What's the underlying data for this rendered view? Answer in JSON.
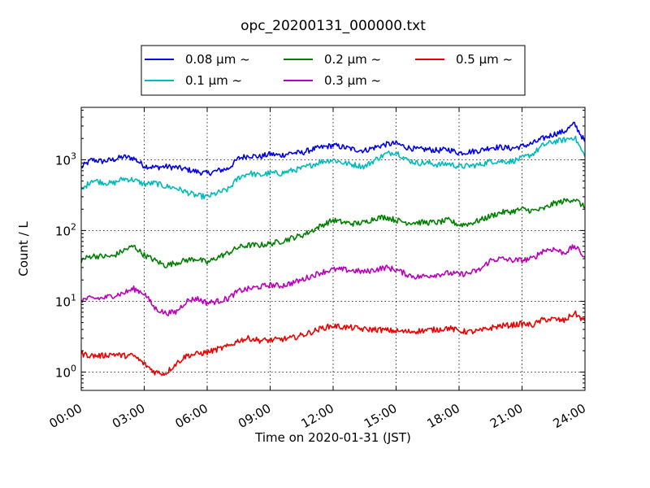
{
  "chart_data": {
    "type": "line",
    "title": "opc_20200131_000000.txt",
    "xlabel": "Time on 2020-01-31 (JST)",
    "ylabel": "Count / L",
    "yscale": "log",
    "ylim": [
      0.55,
      5500
    ],
    "xlim": [
      "2020-01-31 00:00",
      "2020-02-01 00:00"
    ],
    "xticks": [
      "00:00",
      "03:00",
      "06:00",
      "09:00",
      "12:00",
      "15:00",
      "18:00",
      "21:00",
      "24:00"
    ],
    "yticks": [
      {
        "value": 1,
        "base": "10",
        "exp": "0"
      },
      {
        "value": 10,
        "base": "10",
        "exp": "1"
      },
      {
        "value": 100,
        "base": "10",
        "exp": "2"
      },
      {
        "value": 1000,
        "base": "10",
        "exp": "3"
      }
    ],
    "grid": true,
    "legend_position": "top-center",
    "legend_columns": 3,
    "x": [
      "00:00",
      "00:30",
      "01:00",
      "01:30",
      "02:00",
      "02:30",
      "03:00",
      "03:30",
      "04:00",
      "04:30",
      "05:00",
      "05:30",
      "06:00",
      "06:30",
      "07:00",
      "07:30",
      "08:00",
      "08:30",
      "09:00",
      "09:30",
      "10:00",
      "10:30",
      "11:00",
      "11:30",
      "12:00",
      "12:30",
      "13:00",
      "13:30",
      "14:00",
      "14:30",
      "15:00",
      "15:30",
      "16:00",
      "16:30",
      "17:00",
      "17:30",
      "18:00",
      "18:30",
      "19:00",
      "19:30",
      "20:00",
      "20:30",
      "21:00",
      "21:30",
      "22:00",
      "22:30",
      "23:00",
      "23:30",
      "24:00"
    ],
    "series": [
      {
        "name": "0.08 μm ~",
        "label": "0.08",
        "color": "#0000ee",
        "values": [
          780,
          1000,
          950,
          1000,
          1100,
          1050,
          820,
          780,
          800,
          780,
          730,
          680,
          640,
          700,
          750,
          1050,
          1150,
          1100,
          1200,
          1150,
          1250,
          1250,
          1400,
          1500,
          1600,
          1500,
          1400,
          1350,
          1500,
          1650,
          1700,
          1500,
          1400,
          1400,
          1350,
          1400,
          1250,
          1300,
          1350,
          1500,
          1500,
          1450,
          1550,
          1700,
          2000,
          2300,
          2500,
          3200,
          1800
        ]
      },
      {
        "name": "0.1 μm ~",
        "label": "0.1",
        "color": "#00bbbb",
        "values": [
          360,
          520,
          480,
          460,
          540,
          520,
          450,
          470,
          420,
          400,
          350,
          310,
          300,
          340,
          380,
          560,
          650,
          600,
          650,
          640,
          700,
          750,
          850,
          950,
          1000,
          900,
          850,
          800,
          1000,
          1200,
          1300,
          1000,
          900,
          900,
          850,
          880,
          800,
          820,
          850,
          950,
          950,
          950,
          1050,
          1200,
          1600,
          1800,
          1900,
          2100,
          1100
        ]
      },
      {
        "name": "0.2 μm ~",
        "label": "0.2",
        "color": "#008000",
        "values": [
          38,
          44,
          43,
          43,
          52,
          60,
          45,
          38,
          32,
          35,
          38,
          40,
          35,
          42,
          48,
          58,
          62,
          62,
          65,
          70,
          78,
          85,
          100,
          120,
          140,
          130,
          125,
          130,
          150,
          155,
          140,
          130,
          130,
          130,
          130,
          140,
          120,
          125,
          140,
          160,
          180,
          185,
          200,
          190,
          200,
          240,
          260,
          280,
          210
        ]
      },
      {
        "name": "0.3 μm ~",
        "label": "0.3",
        "color": "#bb00bb",
        "values": [
          10.5,
          11,
          11,
          12,
          13,
          15,
          13,
          8,
          6.8,
          7,
          10,
          11,
          9.5,
          10,
          11,
          14,
          15,
          16,
          17,
          16.5,
          18,
          20,
          23,
          26,
          28,
          28,
          27,
          26,
          28,
          30,
          28,
          24,
          22,
          23,
          24,
          25,
          24,
          25,
          28,
          38,
          40,
          38,
          38,
          40,
          52,
          55,
          48,
          60,
          42
        ]
      },
      {
        "name": "0.5 μm ~",
        "label": "0.5",
        "color": "#ee0000",
        "values": [
          1.8,
          1.7,
          1.7,
          1.8,
          1.7,
          1.7,
          1.3,
          1.0,
          0.95,
          1.3,
          1.7,
          1.8,
          1.9,
          2.1,
          2.3,
          2.8,
          3.0,
          2.8,
          2.8,
          2.9,
          3.0,
          3.3,
          3.7,
          4.2,
          4.5,
          4.3,
          4.2,
          4.0,
          4.0,
          3.9,
          3.8,
          3.7,
          3.8,
          3.9,
          4.0,
          4.2,
          3.8,
          3.7,
          3.8,
          4.2,
          4.5,
          4.6,
          4.8,
          4.6,
          5.5,
          5.6,
          5.3,
          6.8,
          5.2
        ]
      }
    ]
  }
}
